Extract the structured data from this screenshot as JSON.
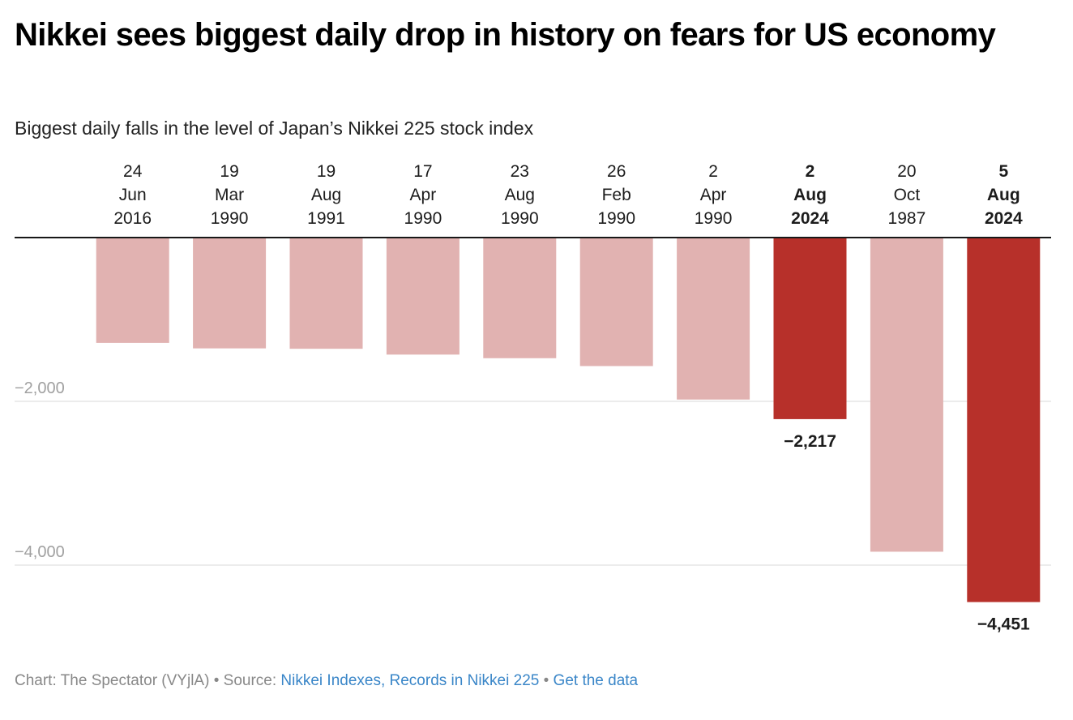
{
  "header": {
    "title": "Nikkei sees biggest daily drop in history on fears for US economy",
    "subtitle": "Biggest daily falls in the level of Japan’s Nikkei 225 stock index"
  },
  "footer": {
    "chart_credit": "Chart: The Spectator (VYjlA)",
    "separator": " • ",
    "source_label": "Source: ",
    "source_link": "Nikkei Indexes, Records in Nikkei 225",
    "data_link": "Get the data"
  },
  "colors": {
    "highlight": "#b7302a",
    "normal": "#e1b2b1",
    "baseline": "#181818",
    "grid": "#e6e6e6",
    "tick_label": "#a0a0a0"
  },
  "chart_data": {
    "type": "bar",
    "orientation": "vertical",
    "title": "Nikkei sees biggest daily drop in history on fears for US economy",
    "subtitle": "Biggest daily falls in the level of Japan’s Nikkei 225 stock index",
    "xlabel": "",
    "ylabel": "",
    "x_axis_position": "top",
    "categories": [
      [
        "24",
        "Jun",
        "2016"
      ],
      [
        "19",
        "Mar",
        "1990"
      ],
      [
        "19",
        "Aug",
        "1991"
      ],
      [
        "17",
        "Apr",
        "1990"
      ],
      [
        "23",
        "Aug",
        "1990"
      ],
      [
        "26",
        "Feb",
        "1990"
      ],
      [
        "2",
        "Apr",
        "1990"
      ],
      [
        "2",
        "Aug",
        "2024"
      ],
      [
        "20",
        "Oct",
        "1987"
      ],
      [
        "5",
        "Aug",
        "2024"
      ]
    ],
    "values": [
      -1286,
      -1353,
      -1358,
      -1429,
      -1473,
      -1569,
      -1978,
      -2217,
      -3836,
      -4451
    ],
    "highlighted": [
      false,
      false,
      false,
      false,
      false,
      false,
      false,
      true,
      false,
      true
    ],
    "data_labels": [
      null,
      null,
      null,
      null,
      null,
      null,
      null,
      "−2,217",
      null,
      "−4,451"
    ],
    "ylim": [
      -4750,
      0
    ],
    "yticks": [
      {
        "value": -2000,
        "label": "−2,000"
      },
      {
        "value": -4000,
        "label": "−4,000"
      }
    ],
    "grid": true,
    "legend": "none"
  }
}
